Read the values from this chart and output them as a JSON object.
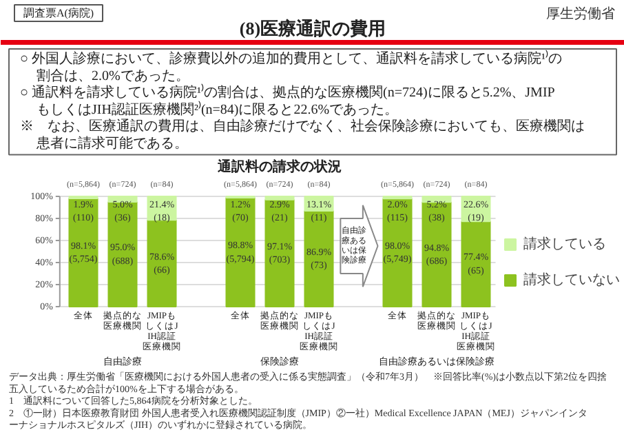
{
  "chart_data": [
    {
      "type": "other",
      "title": "(8)医療通訳の費用",
      "annotations": [
        "調査票A(病院)",
        "厚生労働省",
        "○ 外国人診療において、診療費以外の追加的費用として、通訳料を請求している病院¹⁾の割合は、2.0%であった。",
        "○ 通訳料を請求している病院¹⁾の割合は、拠点的な医療機関(n=724)に限ると5.2%、JMIPもしくはJIH認証医療機関²⁾(n=84)に限ると22.6%であった。",
        "※　なお、医療通訳の費用は、自由診療だけでなく、社会保険診療においても、医療機関は患者に請求可能である。"
      ]
    },
    {
      "type": "bar",
      "title": "通訳料の請求の状況",
      "stacked": true,
      "grid": "y",
      "legend": "right",
      "categories": [
        "全体",
        "拠点的な医療機関",
        "JMIPもしくはJIH認証医療機関",
        null,
        "全体",
        "拠点的な医療機関",
        "JMIPもしくはJIH認証医療機関",
        null,
        "全体",
        "拠点的な医療機関",
        "JMIPもしくはJIH認証医療機関"
      ],
      "ylim": [
        0,
        100
      ],
      "yticks": [
        {
          "value": 0,
          "label": "0%"
        },
        {
          "value": 20,
          "label": "20%"
        },
        {
          "value": 40,
          "label": "40%"
        },
        {
          "value": 60,
          "label": "60%"
        },
        {
          "value": 80,
          "label": "80%"
        },
        {
          "value": 100,
          "label": "100%"
        }
      ],
      "series": [
        {
          "name": "請求していない",
          "color": "#8dc21f",
          "values": [
            98.1,
            95.0,
            78.6,
            null,
            98.8,
            97.1,
            86.9,
            null,
            98.0,
            94.8,
            77.4
          ],
          "value_labels": [
            "98.1%\n(5,754)",
            "95.0%\n(688)",
            "78.6%\n(66)",
            null,
            "98.8%\n(5,794)",
            "97.1%\n(703)",
            "86.9%\n(73)",
            null,
            "98.0%\n(5,749)",
            "94.8%\n(686)",
            "77.4%\n(65)"
          ]
        },
        {
          "name": "請求している",
          "color": "#ccf5a0",
          "values": [
            1.9,
            5.0,
            21.4,
            null,
            1.2,
            2.9,
            13.1,
            null,
            2.0,
            5.2,
            22.6
          ],
          "value_labels": [
            "1.9%\n(110)",
            "5.0%\n(36)",
            "21.4%\n(18)",
            null,
            "1.2%\n(70)",
            "2.9%\n(21)",
            "13.1%\n(11)",
            null,
            "2.0%\n(115)",
            "5.2%\n(38)",
            "22.6%\n(19)"
          ]
        }
      ],
      "annotations": [
        "(n=5,864)",
        "(n=724)",
        "(n=84)",
        "(n=5,864)",
        "(n=724)",
        "(n=84)",
        "(n=5,864)",
        "(n=724)",
        "(n=84)",
        "自由診療あるいは保険診療",
        "自由診療",
        "保険診療",
        "自由診療あるいは保険診療",
        "データ出典：厚生労働省「医療機関における外国人患者の受入に係る実態調査」（令和7年3月）　※回答比率(%)は小数点以下第2位を四捨五入しているため合計が100%を上下する場合がある。",
        "1　通訳料について回答した5,864病院を分析対象とした。",
        "2　①一財）日本医療教育財団 外国人患者受入れ医療機関認証制度（JMIP）②一社）Medical Excellence JAPAN（MEJ）ジャパンインターナショナルホスピタルズ（JIH）のいずれかに登録されている病院。"
      ]
    }
  ]
}
